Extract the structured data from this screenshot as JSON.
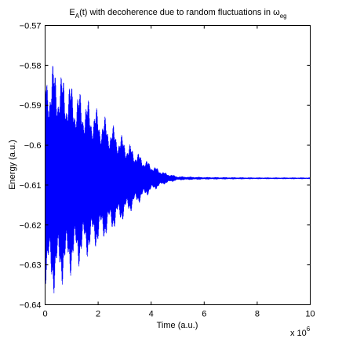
{
  "chart_data": {
    "type": "line",
    "title": {
      "main": "E",
      "sub_A": "A",
      "mid": "(t) with decoherence due to random fluctuations in ω",
      "sub_eg": "eg"
    },
    "xlabel": "Time (a.u.)",
    "ylabel": "Energy (a.u.)",
    "x_exponent": {
      "base": "x 10",
      "power": "6"
    },
    "xlim": [
      0,
      10
    ],
    "ylim": [
      -0.64,
      -0.57
    ],
    "xticks": [
      0,
      2,
      4,
      6,
      8,
      10
    ],
    "xtick_labels": [
      "0",
      "2",
      "4",
      "6",
      "8",
      "10"
    ],
    "yticks": [
      -0.57,
      -0.58,
      -0.59,
      -0.6,
      -0.61,
      -0.62,
      -0.63,
      -0.64
    ],
    "ytick_labels": [
      "−0.57",
      "−0.58",
      "−0.59",
      "−0.6",
      "−0.61",
      "−0.62",
      "−0.63",
      "−0.64"
    ],
    "grid": false,
    "series": [
      {
        "color": "#0000ff",
        "mean": -0.6083,
        "envelope": {
          "x": [
            0,
            0.25,
            0.5,
            1,
            1.5,
            2,
            2.5,
            3,
            3.5,
            4,
            4.5,
            5,
            6,
            8,
            10
          ],
          "upper": [
            -0.5815,
            -0.5785,
            -0.5805,
            -0.5842,
            -0.5875,
            -0.591,
            -0.5945,
            -0.5982,
            -0.6018,
            -0.6047,
            -0.6068,
            -0.6078,
            -0.608,
            -0.6081,
            -0.6081
          ],
          "lower": [
            -0.635,
            -0.638,
            -0.636,
            -0.6325,
            -0.629,
            -0.6255,
            -0.622,
            -0.6185,
            -0.6148,
            -0.6118,
            -0.6098,
            -0.6088,
            -0.6086,
            -0.6085,
            -0.6085
          ]
        }
      }
    ]
  }
}
